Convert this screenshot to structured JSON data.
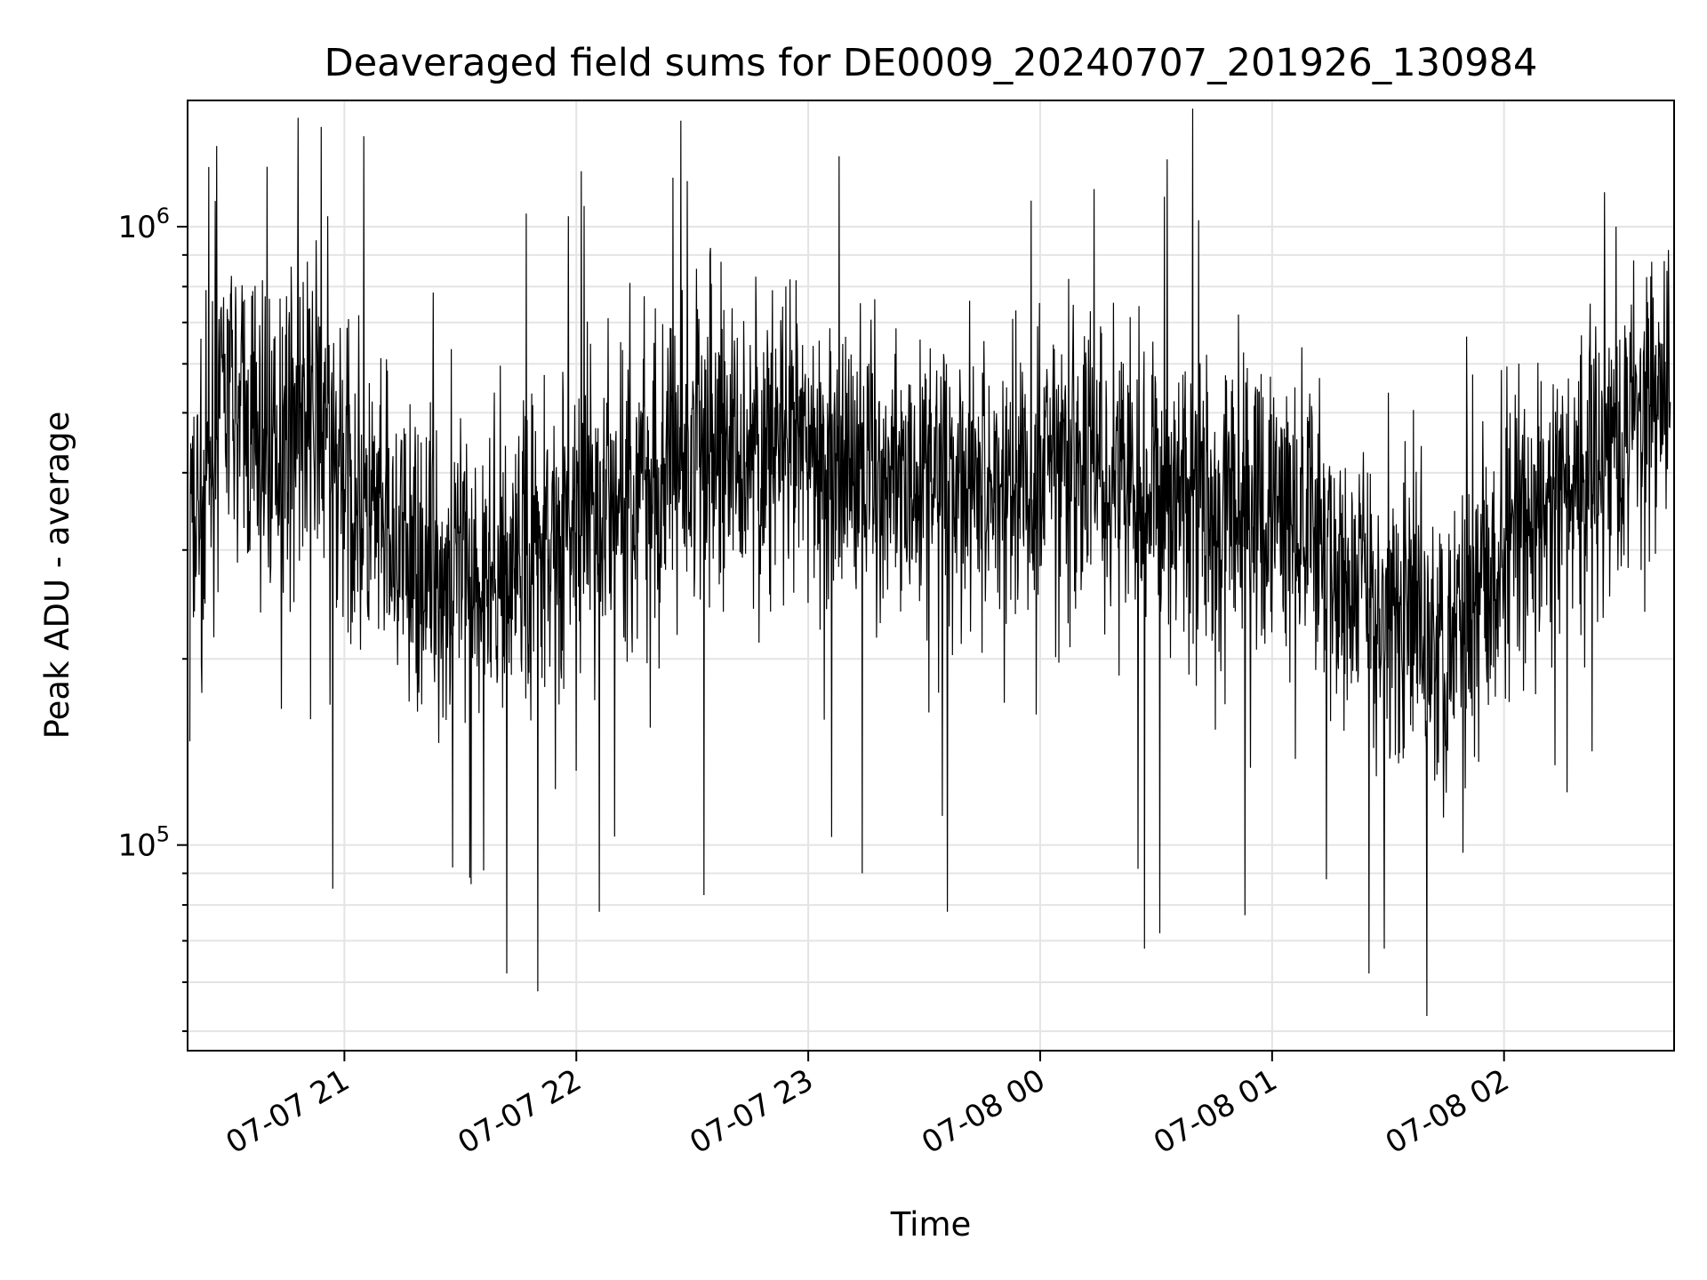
{
  "chart_data": {
    "type": "line",
    "title": "Deaveraged field sums for DE0009_20240707_201926_130984",
    "xlabel": "Time",
    "ylabel": "Peak ADU - average",
    "y_scale": "log",
    "grid": true,
    "xlim": [
      "2024-07-07 20:19:26",
      "2024-07-08 02:44:00"
    ],
    "ylim": [
      46500,
      1600000
    ],
    "x_ticks": [
      {
        "value": "2024-07-07 21:00",
        "label": "07-07 21"
      },
      {
        "value": "2024-07-07 22:00",
        "label": "07-07 22"
      },
      {
        "value": "2024-07-07 23:00",
        "label": "07-07 23"
      },
      {
        "value": "2024-07-08 00:00",
        "label": "07-08 00"
      },
      {
        "value": "2024-07-08 01:00",
        "label": "07-08 01"
      },
      {
        "value": "2024-07-08 02:00",
        "label": "07-08 02"
      }
    ],
    "y_ticks": [
      {
        "value": 100000,
        "base": "10",
        "exp": "5"
      },
      {
        "value": 1000000,
        "base": "10",
        "exp": "6"
      }
    ],
    "series": [
      {
        "color": "#000000",
        "points": [
          [
            "2024-07-07 20:20",
            310000
          ],
          [
            "2024-07-07 20:25",
            420000
          ],
          [
            "2024-07-07 20:30",
            520000
          ],
          [
            "2024-07-07 20:35",
            470000
          ],
          [
            "2024-07-07 20:40",
            430000
          ],
          [
            "2024-07-07 20:45",
            480000
          ],
          [
            "2024-07-07 20:50",
            500000
          ],
          [
            "2024-07-07 20:55",
            450000
          ],
          [
            "2024-07-07 21:00",
            390000
          ],
          [
            "2024-07-07 21:05",
            340000
          ],
          [
            "2024-07-07 21:10",
            310000
          ],
          [
            "2024-07-07 21:15",
            290000
          ],
          [
            "2024-07-07 21:20",
            280000
          ],
          [
            "2024-07-07 21:25",
            270000
          ],
          [
            "2024-07-07 21:30",
            280000
          ],
          [
            "2024-07-07 21:35",
            270000
          ],
          [
            "2024-07-07 21:40",
            280000
          ],
          [
            "2024-07-07 21:45",
            290000
          ],
          [
            "2024-07-07 21:50",
            310000
          ],
          [
            "2024-07-07 21:55",
            320000
          ],
          [
            "2024-07-07 22:00",
            330000
          ],
          [
            "2024-07-07 22:05",
            340000
          ],
          [
            "2024-07-07 22:10",
            350000
          ],
          [
            "2024-07-07 22:15",
            380000
          ],
          [
            "2024-07-07 22:20",
            400000
          ],
          [
            "2024-07-07 22:25",
            420000
          ],
          [
            "2024-07-07 22:30",
            430000
          ],
          [
            "2024-07-07 22:35",
            440000
          ],
          [
            "2024-07-07 22:40",
            440000
          ],
          [
            "2024-07-07 22:45",
            430000
          ],
          [
            "2024-07-07 22:50",
            440000
          ],
          [
            "2024-07-07 22:55",
            430000
          ],
          [
            "2024-07-07 23:00",
            430000
          ],
          [
            "2024-07-07 23:05",
            420000
          ],
          [
            "2024-07-07 23:10",
            410000
          ],
          [
            "2024-07-07 23:15",
            420000
          ],
          [
            "2024-07-07 23:20",
            400000
          ],
          [
            "2024-07-07 23:25",
            400000
          ],
          [
            "2024-07-07 23:30",
            400000
          ],
          [
            "2024-07-07 23:35",
            390000
          ],
          [
            "2024-07-07 23:40",
            400000
          ],
          [
            "2024-07-07 23:45",
            390000
          ],
          [
            "2024-07-07 23:50",
            390000
          ],
          [
            "2024-07-07 23:55",
            380000
          ],
          [
            "2024-07-08 00:00",
            390000
          ],
          [
            "2024-07-08 00:05",
            400000
          ],
          [
            "2024-07-08 00:10",
            410000
          ],
          [
            "2024-07-08 00:15",
            410000
          ],
          [
            "2024-07-08 00:20",
            400000
          ],
          [
            "2024-07-08 00:25",
            390000
          ],
          [
            "2024-07-08 00:30",
            380000
          ],
          [
            "2024-07-08 00:35",
            370000
          ],
          [
            "2024-07-08 00:40",
            360000
          ],
          [
            "2024-07-08 00:45",
            350000
          ],
          [
            "2024-07-08 00:50",
            350000
          ],
          [
            "2024-07-08 00:55",
            350000
          ],
          [
            "2024-07-08 01:00",
            340000
          ],
          [
            "2024-07-08 01:05",
            330000
          ],
          [
            "2024-07-08 01:10",
            310000
          ],
          [
            "2024-07-08 01:15",
            290000
          ],
          [
            "2024-07-08 01:20",
            270000
          ],
          [
            "2024-07-08 01:25",
            250000
          ],
          [
            "2024-07-08 01:30",
            240000
          ],
          [
            "2024-07-08 01:35",
            230000
          ],
          [
            "2024-07-08 01:40",
            220000
          ],
          [
            "2024-07-08 01:45",
            230000
          ],
          [
            "2024-07-08 01:50",
            250000
          ],
          [
            "2024-07-08 01:55",
            280000
          ],
          [
            "2024-07-08 02:00",
            300000
          ],
          [
            "2024-07-08 02:05",
            320000
          ],
          [
            "2024-07-08 02:10",
            340000
          ],
          [
            "2024-07-08 02:15",
            360000
          ],
          [
            "2024-07-08 02:20",
            400000
          ],
          [
            "2024-07-08 02:25",
            440000
          ],
          [
            "2024-07-08 02:30",
            470000
          ],
          [
            "2024-07-08 02:35",
            500000
          ],
          [
            "2024-07-08 02:40",
            530000
          ],
          [
            "2024-07-08 02:43",
            560000
          ],
          [
            "2024-07-07 20:48",
            1500000
          ],
          [
            "2024-07-07 20:54",
            1450000
          ],
          [
            "2024-07-07 21:05",
            1400000
          ],
          [
            "2024-07-07 20:27",
            1350000
          ],
          [
            "2024-07-07 23:08",
            1300000
          ],
          [
            "2024-07-07 20:40",
            1250000
          ],
          [
            "2024-07-07 22:25",
            1200000
          ],
          [
            "2024-07-08 00:14",
            1150000
          ],
          [
            "2024-07-07 21:47",
            1050000
          ],
          [
            "2024-07-08 02:29",
            1000000
          ],
          [
            "2024-07-07 22:02",
            1080000
          ],
          [
            "2024-07-07 21:50",
            58000
          ],
          [
            "2024-07-07 21:42",
            62000
          ],
          [
            "2024-07-08 01:25",
            62000
          ],
          [
            "2024-07-08 00:27",
            68000
          ],
          [
            "2024-07-08 00:31",
            72000
          ],
          [
            "2024-07-08 01:29",
            68000
          ],
          [
            "2024-07-07 20:57",
            85000
          ],
          [
            "2024-07-07 22:06",
            78000
          ],
          [
            "2024-07-07 23:36",
            78000
          ],
          [
            "2024-07-08 00:53",
            77000
          ],
          [
            "2024-07-07 22:33",
            83000
          ],
          [
            "2024-07-08 01:14",
            88000
          ],
          [
            "2024-07-07 23:14",
            90000
          ],
          [
            "2024-07-07 21:28",
            92000
          ],
          [
            "2024-07-07 21:36",
            91000
          ]
        ]
      }
    ]
  }
}
